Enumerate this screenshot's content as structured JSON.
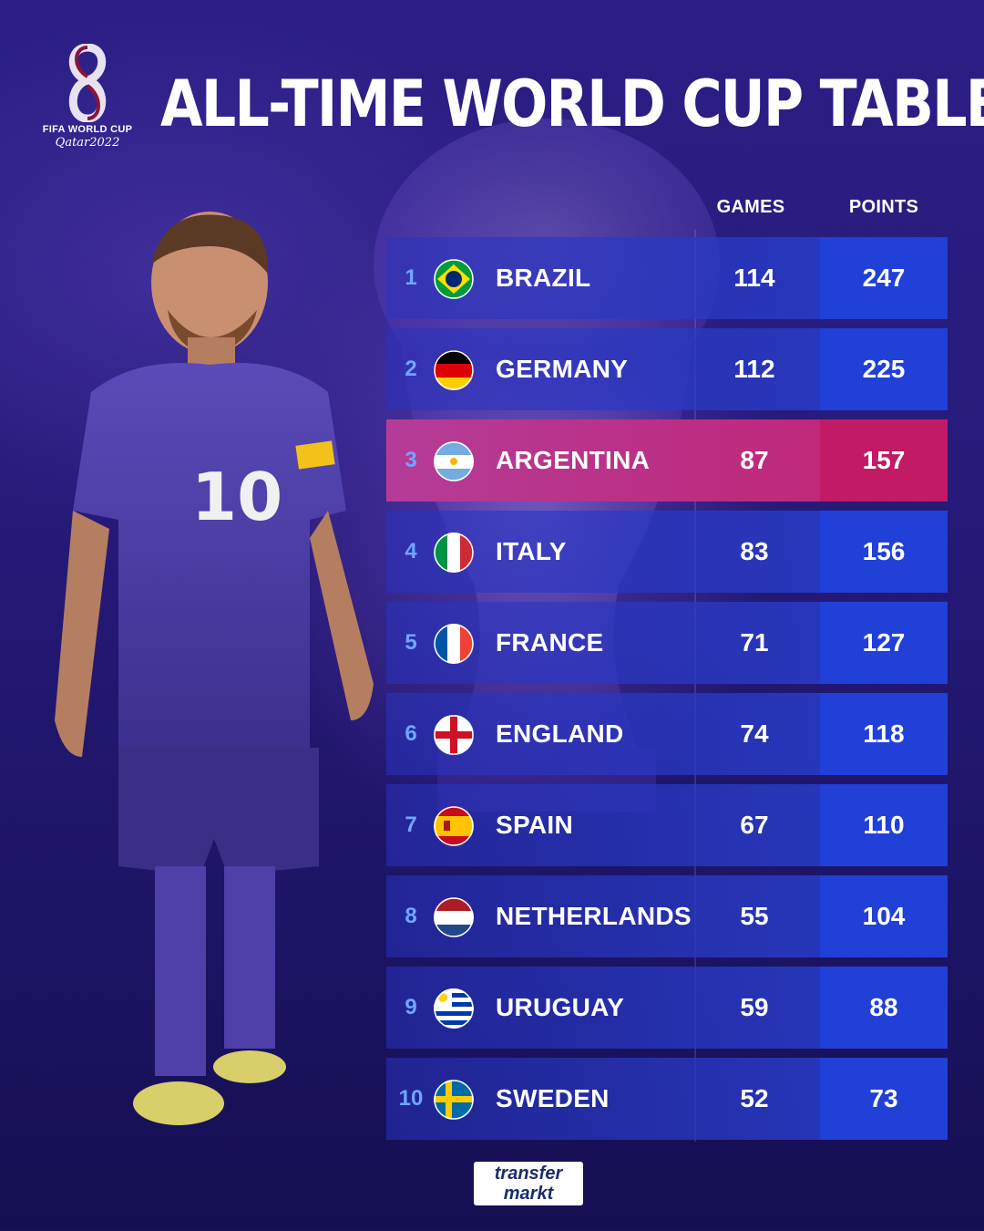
{
  "logo": {
    "line1": "FIFA WORLD CUP",
    "line2": "Qatar2022"
  },
  "title": "ALL-TIME WORLD CUP TABLE",
  "columns": {
    "games": "GAMES",
    "points": "POINTS"
  },
  "colors": {
    "rank": "#6fa6ff",
    "points_bg": "#2040d8",
    "highlight": "#c31a66"
  },
  "rows": [
    {
      "rank": "1",
      "country": "BRAZIL",
      "games": "114",
      "points": "247",
      "flag": "brazil-flag-icon"
    },
    {
      "rank": "2",
      "country": "GERMANY",
      "games": "112",
      "points": "225",
      "flag": "germany-flag-icon"
    },
    {
      "rank": "3",
      "country": "ARGENTINA",
      "games": "87",
      "points": "157",
      "flag": "argentina-flag-icon"
    },
    {
      "rank": "4",
      "country": "ITALY",
      "games": "83",
      "points": "156",
      "flag": "italy-flag-icon"
    },
    {
      "rank": "5",
      "country": "FRANCE",
      "games": "71",
      "points": "127",
      "flag": "france-flag-icon"
    },
    {
      "rank": "6",
      "country": "ENGLAND",
      "games": "74",
      "points": "118",
      "flag": "england-flag-icon"
    },
    {
      "rank": "7",
      "country": "SPAIN",
      "games": "67",
      "points": "110",
      "flag": "spain-flag-icon"
    },
    {
      "rank": "8",
      "country": "NETHERLANDS",
      "games": "55",
      "points": "104",
      "flag": "netherlands-flag-icon"
    },
    {
      "rank": "9",
      "country": "URUGUAY",
      "games": "59",
      "points": "88",
      "flag": "uruguay-flag-icon"
    },
    {
      "rank": "10",
      "country": "SWEDEN",
      "games": "52",
      "points": "73",
      "flag": "sweden-flag-icon"
    }
  ],
  "footer": {
    "brand_top": "transfer",
    "brand_bottom": "markt"
  }
}
